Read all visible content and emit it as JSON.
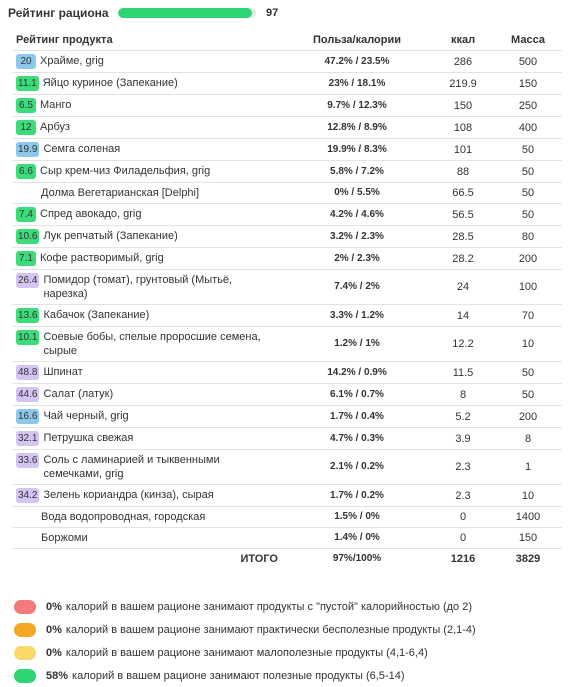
{
  "header": {
    "title": "Рейтинг рациона",
    "rating": 97
  },
  "table": {
    "columns": [
      "Рейтинг продукта",
      "Польза/калории",
      "ккал",
      "Масса"
    ],
    "rows": [
      {
        "score": 20,
        "badge_color": "#8cc8ec",
        "name": "Храйме, grig",
        "ratio": "47.2% / 23.5%",
        "kcal": 286,
        "mass": 500
      },
      {
        "score": 11.1,
        "badge_color": "#3ddc7a",
        "name": "Яйцо куриное (Запекание)",
        "ratio": "23% / 18.1%",
        "kcal": 219.9,
        "mass": 150
      },
      {
        "score": 6.5,
        "badge_color": "#3ddc7a",
        "name": "Манго",
        "ratio": "9.7% / 12.3%",
        "kcal": 150,
        "mass": 250
      },
      {
        "score": 12,
        "badge_color": "#3ddc7a",
        "name": "Арбуз",
        "ratio": "12.8% / 8.9%",
        "kcal": 108,
        "mass": 400
      },
      {
        "score": 19.9,
        "badge_color": "#8cc8ec",
        "name": "Семга соленая",
        "ratio": "19.9% / 8.3%",
        "kcal": 101,
        "mass": 50
      },
      {
        "score": 6.6,
        "badge_color": "#3ddc7a",
        "name": "Сыр крем-чиз Филадельфия, grig",
        "ratio": "5.8% / 7.2%",
        "kcal": 88,
        "mass": 50
      },
      {
        "name": "Долма Вегетарианская [Delphi]",
        "ratio": "0% / 5.5%",
        "kcal": 66.5,
        "mass": 50
      },
      {
        "score": 7.4,
        "badge_color": "#3ddc7a",
        "name": "Спред авокадо, grig",
        "ratio": "4.2% / 4.6%",
        "kcal": 56.5,
        "mass": 50
      },
      {
        "score": 10.6,
        "badge_color": "#3ddc7a",
        "name": "Лук репчатый (Запекание)",
        "ratio": "3.2% / 2.3%",
        "kcal": 28.5,
        "mass": 80
      },
      {
        "score": 7.1,
        "badge_color": "#3ddc7a",
        "name": "Кофе растворимый, grig",
        "ratio": "2% / 2.3%",
        "kcal": 28.2,
        "mass": 200
      },
      {
        "score": 26.4,
        "badge_color": "#d4c4f4",
        "name": "Помидор (томат), грунтовый (Мытьё, нарезка)",
        "ratio": "7.4% / 2%",
        "kcal": 24,
        "mass": 100
      },
      {
        "score": 13.6,
        "badge_color": "#3ddc7a",
        "name": "Кабачок (Запекание)",
        "ratio": "3.3% / 1.2%",
        "kcal": 14,
        "mass": 70
      },
      {
        "score": 10.1,
        "badge_color": "#3ddc7a",
        "name": "Соевые бобы, спелые проросшие семена, сырые",
        "ratio": "1.2% / 1%",
        "kcal": 12.2,
        "mass": 10
      },
      {
        "score": 48.8,
        "badge_color": "#d4c4f4",
        "name": "Шпинат",
        "ratio": "14.2% / 0.9%",
        "kcal": 11.5,
        "mass": 50
      },
      {
        "score": 44.6,
        "badge_color": "#d4c4f4",
        "name": "Салат (латук)",
        "ratio": "6.1% / 0.7%",
        "kcal": 8,
        "mass": 50
      },
      {
        "score": 16.6,
        "badge_color": "#8cc8ec",
        "name": "Чай черный, grig",
        "ratio": "1.7% / 0.4%",
        "kcal": 5.2,
        "mass": 200
      },
      {
        "score": 32.1,
        "badge_color": "#d4c4f4",
        "name": "Петрушка свежая",
        "ratio": "4.7% / 0.3%",
        "kcal": 3.9,
        "mass": 8
      },
      {
        "score": 33.6,
        "badge_color": "#d4c4f4",
        "name": "Соль с ламинарией и тыквенными семечками, grig",
        "ratio": "2.1% / 0.2%",
        "kcal": 2.3,
        "mass": 1
      },
      {
        "score": 34.2,
        "badge_color": "#d4c4f4",
        "name": "Зелень кориандра (кинза), сырая",
        "ratio": "1.7% / 0.2%",
        "kcal": 2.3,
        "mass": 10
      },
      {
        "name": "Вода водопроводная, городская",
        "ratio": "1.5% / 0%",
        "kcal": 0,
        "mass": 1400
      },
      {
        "name": "Боржоми",
        "ratio": "1.4% / 0%",
        "kcal": 0,
        "mass": 150
      }
    ],
    "total": {
      "label": "ИТОГО",
      "ratio": "97%/100%",
      "kcal": 1216,
      "mass": 3829
    }
  },
  "legend": [
    {
      "color": "#f47a7a",
      "percent": "0%",
      "text": "калорий в вашем рационе занимают продукты с \"пустой\" калорийностью (до 2)"
    },
    {
      "color": "#f5a623",
      "percent": "0%",
      "text": "калорий в вашем рационе занимают практически бесполезные продукты (2,1-4)"
    },
    {
      "color": "#f8d96a",
      "percent": "0%",
      "text": "калорий в вашем рационе занимают малополезные продукты (4,1-6,4)"
    },
    {
      "color": "#2ed573",
      "percent": "58%",
      "text": "калорий в вашем рационе занимают полезные продукты (6,5-14)"
    }
  ]
}
